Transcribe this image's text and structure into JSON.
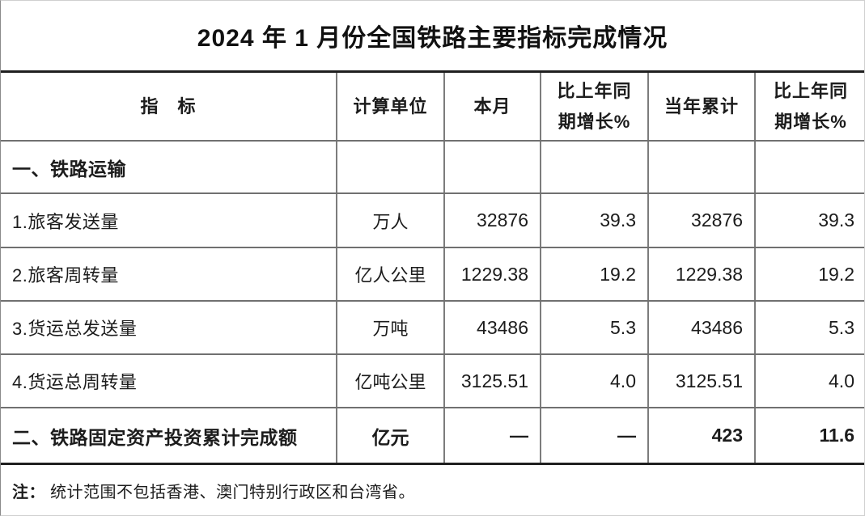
{
  "title": "2024 年 1 月份全国铁路主要指标完成情况",
  "table": {
    "headers": {
      "indicator": "指　标",
      "unit": "计算单位",
      "month": "本月",
      "yoy_month": "比上年同\n期增长%",
      "ytd": "当年累计",
      "yoy_ytd": "比上年同\n期增长%"
    },
    "rows": [
      {
        "label": "一、铁路运输",
        "unit": "",
        "month": "",
        "yoy_month": "",
        "ytd": "",
        "yoy_ytd": ""
      },
      {
        "label": "1.旅客发送量",
        "unit": "万人",
        "month": "32876",
        "yoy_month": "39.3",
        "ytd": "32876",
        "yoy_ytd": "39.3"
      },
      {
        "label": "2.旅客周转量",
        "unit": "亿人公里",
        "month": "1229.38",
        "yoy_month": "19.2",
        "ytd": "1229.38",
        "yoy_ytd": "19.2"
      },
      {
        "label": "3.货运总发送量",
        "unit": "万吨",
        "month": "43486",
        "yoy_month": "5.3",
        "ytd": "43486",
        "yoy_ytd": "5.3"
      },
      {
        "label": "4.货运总周转量",
        "unit": "亿吨公里",
        "month": "3125.51",
        "yoy_month": "4.0",
        "ytd": "3125.51",
        "yoy_ytd": "4.0"
      },
      {
        "label": "二、铁路固定资产投资累计完成额",
        "unit": "亿元",
        "month": "—",
        "yoy_month": "—",
        "ytd": "423",
        "yoy_ytd": "11.6"
      }
    ]
  },
  "note": {
    "prefix": "注：",
    "text": "统计范围不包括香港、澳门特别行政区和台湾省。"
  },
  "colors": {
    "thick_border": "#1f1f1f",
    "thin_border": "#707070",
    "text": "#1c1c1c",
    "background": "#ffffff"
  }
}
